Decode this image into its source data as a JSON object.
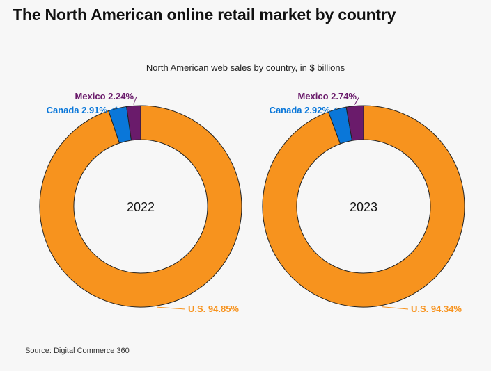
{
  "page": {
    "title": "The North American online retail market by country",
    "source": "Source: Digital Commerce 360"
  },
  "chart_data": {
    "type": "pie",
    "subtitle": "North American web sales by country, in $ billions",
    "colors": {
      "U.S.": "#f7931e",
      "Canada": "#0a77d9",
      "Mexico": "#6a1b6b"
    },
    "charts": [
      {
        "center_label": "2022",
        "slices": [
          {
            "name": "U.S.",
            "value": 94.85,
            "label": "U.S. 94.85%"
          },
          {
            "name": "Canada",
            "value": 2.91,
            "label": "Canada 2.91%"
          },
          {
            "name": "Mexico",
            "value": 2.24,
            "label": "Mexico 2.24%"
          }
        ]
      },
      {
        "center_label": "2023",
        "slices": [
          {
            "name": "U.S.",
            "value": 94.34,
            "label": "U.S. 94.34%"
          },
          {
            "name": "Canada",
            "value": 2.92,
            "label": "Canada 2.92%"
          },
          {
            "name": "Mexico",
            "value": 2.74,
            "label": "Mexico 2.74%"
          }
        ]
      }
    ]
  }
}
